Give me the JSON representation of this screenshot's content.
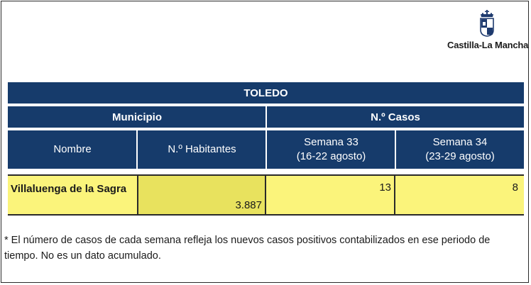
{
  "logo": {
    "text": "Castilla-La Mancha",
    "icon": "coat-of-arms-icon"
  },
  "table": {
    "title": "TOLEDO",
    "group_headers": {
      "municipio": "Municipio",
      "casos": "N.º Casos"
    },
    "column_headers": {
      "nombre": "Nombre",
      "habitantes": "N.º Habitantes",
      "semana33_line1": "Semana 33",
      "semana33_line2": "(16-22 agosto)",
      "semana34_line1": "Semana 34",
      "semana34_line2": "(23-29 agosto)"
    },
    "rows": [
      {
        "nombre": "Villaluenga de la Sagra",
        "habitantes": "3.887",
        "semana33": "13",
        "semana34": "8"
      }
    ]
  },
  "note": "* El número de casos de cada semana refleja los nuevos casos positivos contabilizados en ese periodo de tiempo. No es un dato acumulado.",
  "colors": {
    "header_bg": "#163b6b",
    "row_highlight": "#fbf47b",
    "cell_highlight": "#e8e25e"
  }
}
